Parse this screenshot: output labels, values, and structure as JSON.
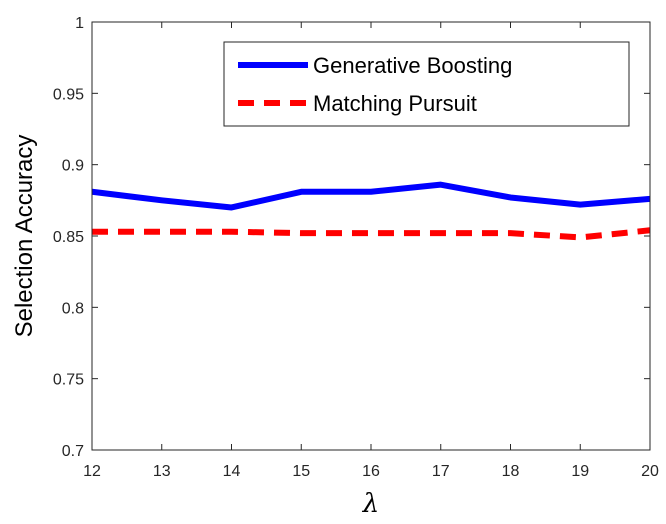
{
  "chart_data": {
    "type": "line",
    "title": "",
    "xlabel": "λ",
    "ylabel": "Selection Accuracy",
    "x": [
      12,
      13,
      14,
      15,
      16,
      17,
      18,
      19,
      20
    ],
    "xlim": [
      12,
      20
    ],
    "ylim": [
      0.7,
      1
    ],
    "xticks": [
      "12",
      "13",
      "14",
      "15",
      "16",
      "17",
      "18",
      "19",
      "20"
    ],
    "yticks": [
      "0.7",
      "0.75",
      "0.8",
      "0.85",
      "0.9",
      "0.95",
      "1"
    ],
    "grid": false,
    "legend_position": "top-right",
    "series": [
      {
        "name": "Generative Boosting",
        "values": [
          0.881,
          0.875,
          0.87,
          0.881,
          0.881,
          0.886,
          0.877,
          0.872,
          0.876
        ],
        "color": "#0000ff",
        "style": "solid"
      },
      {
        "name": "Matching Pursuit",
        "values": [
          0.853,
          0.853,
          0.853,
          0.852,
          0.852,
          0.852,
          0.852,
          0.849,
          0.854
        ],
        "color": "#ff0000",
        "style": "dashed"
      }
    ]
  }
}
